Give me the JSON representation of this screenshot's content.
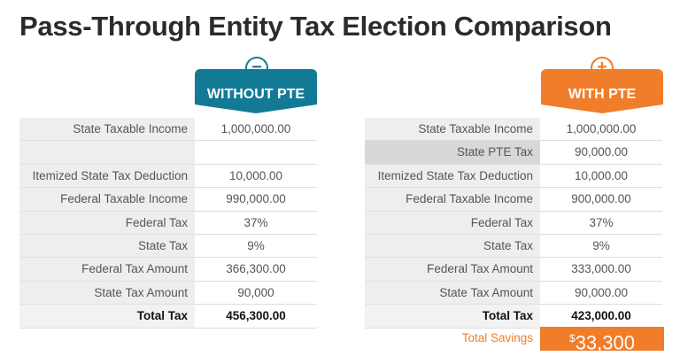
{
  "title": "Pass-Through Entity Tax Election Comparison",
  "colors": {
    "without": "#137a96",
    "with": "#f07d2a"
  },
  "without": {
    "header": "WITHOUT PTE",
    "icon": "minus-circle-icon",
    "rows": [
      {
        "label": "State Taxable Income",
        "value": "1,000,000.00"
      },
      {
        "label": "",
        "value": ""
      },
      {
        "label": "Itemized State Tax Deduction",
        "value": "10,000.00"
      },
      {
        "label": "Federal Taxable Income",
        "value": "990,000.00"
      },
      {
        "label": "Federal Tax",
        "value": "37%"
      },
      {
        "label": "State Tax",
        "value": "9%"
      },
      {
        "label": "Federal Tax Amount",
        "value": "366,300.00"
      },
      {
        "label": "State Tax Amount",
        "value": "90,000"
      },
      {
        "label": "Total Tax",
        "value": "456,300.00"
      }
    ]
  },
  "with": {
    "header": "WITH PTE",
    "icon": "plus-circle-icon",
    "rows": [
      {
        "label": "State Taxable Income",
        "value": "1,000,000.00"
      },
      {
        "label": "State PTE Tax",
        "value": "90,000.00"
      },
      {
        "label": "Itemized State Tax Deduction",
        "value": "10,000.00"
      },
      {
        "label": "Federal Taxable Income",
        "value": "900,000.00"
      },
      {
        "label": "Federal Tax",
        "value": "37%"
      },
      {
        "label": "State Tax",
        "value": "9%"
      },
      {
        "label": "Federal Tax Amount",
        "value": "333,000.00"
      },
      {
        "label": "State Tax Amount",
        "value": "90,000.00"
      },
      {
        "label": "Total Tax",
        "value": "423,000.00"
      }
    ],
    "savings_label": "Total Savings",
    "savings_currency": "$",
    "savings_value": "33,300"
  }
}
